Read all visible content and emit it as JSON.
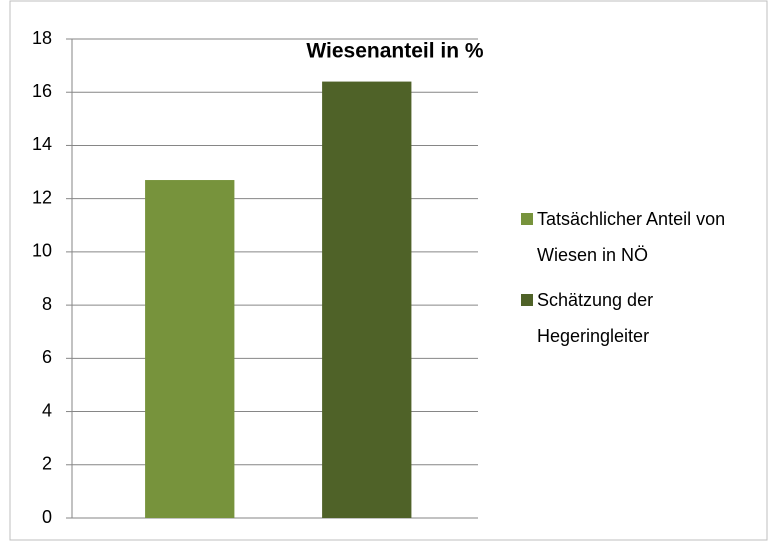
{
  "chart_data": {
    "type": "bar",
    "title": "Wiesenanteil in %",
    "categories": [
      null
    ],
    "series": [
      {
        "name": "Tatsächlicher Anteil von Wiesen in NÖ",
        "color": "#77933c",
        "values": [
          12.7
        ]
      },
      {
        "name": "Schätzung der Hegeringleiter",
        "color": "#4f6228",
        "values": [
          16.4
        ]
      }
    ],
    "ylim": [
      0,
      18
    ],
    "yticks": [
      0,
      2,
      4,
      6,
      8,
      10,
      12,
      14,
      16,
      18
    ],
    "grid": true,
    "legend": "right"
  }
}
